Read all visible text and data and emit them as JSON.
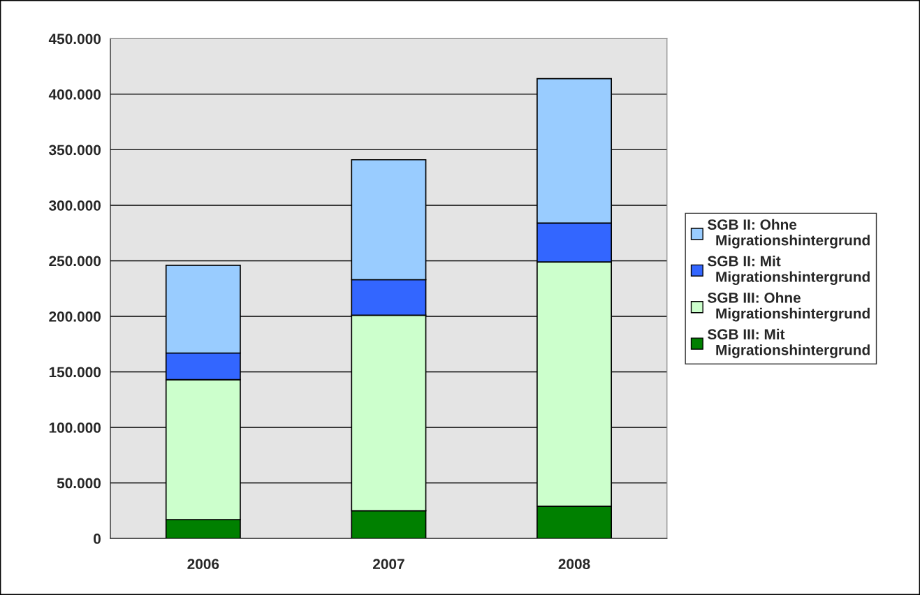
{
  "chart_data": {
    "type": "bar",
    "stacked": true,
    "categories": [
      "2006",
      "2007",
      "2008"
    ],
    "series": [
      {
        "name": "SGB III: Mit Migrationshintergrund",
        "color": "#008000",
        "values": [
          17000,
          25000,
          29000
        ]
      },
      {
        "name": "SGB III: Ohne Migrationshintergrund",
        "color": "#ccffcc",
        "values": [
          126000,
          176000,
          220000
        ]
      },
      {
        "name": "SGB II: Mit Migrationshintergrund",
        "color": "#3366ff",
        "values": [
          24000,
          32000,
          35000
        ]
      },
      {
        "name": "SGB II: Ohne Migrationshintergrund",
        "color": "#99ccff",
        "values": [
          79000,
          108000,
          130000
        ]
      }
    ],
    "ylim": [
      0,
      450000
    ],
    "yticks": [
      {
        "value": 0,
        "label": "0"
      },
      {
        "value": 50000,
        "label": "50.000"
      },
      {
        "value": 100000,
        "label": "100.000"
      },
      {
        "value": 150000,
        "label": "150.000"
      },
      {
        "value": 200000,
        "label": "200.000"
      },
      {
        "value": 250000,
        "label": "250.000"
      },
      {
        "value": 300000,
        "label": "300.000"
      },
      {
        "value": 350000,
        "label": "350.000"
      },
      {
        "value": 400000,
        "label": "400.000"
      },
      {
        "value": 450000,
        "label": "450.000"
      }
    ],
    "grid": "y",
    "legend": "right"
  }
}
